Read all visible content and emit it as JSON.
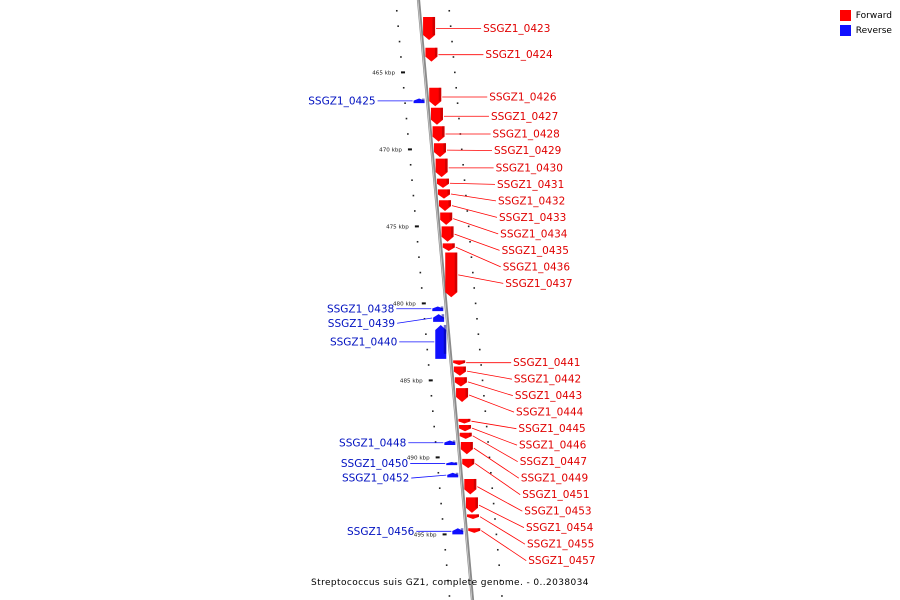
{
  "legend": {
    "forward": {
      "label": "Forward",
      "color": "#ff0000"
    },
    "reverse": {
      "label": "Reverse",
      "color": "#1010ff"
    }
  },
  "caption": "Streptococcus suis GZ1, complete genome. - 0..2038034",
  "ticks": [
    {
      "kbp": 465,
      "label": "465 kbp"
    },
    {
      "kbp": 470,
      "label": "470 kbp"
    },
    {
      "kbp": 475,
      "label": "475 kbp"
    },
    {
      "kbp": 480,
      "label": "480 kbp"
    },
    {
      "kbp": 485,
      "label": "485 kbp"
    },
    {
      "kbp": 490,
      "label": "490 kbp"
    },
    {
      "kbp": 495,
      "label": "495 kbp"
    }
  ],
  "genes": [
    {
      "name": "SSGZ1_0423",
      "strand": "forward",
      "start_kbp": 461.4,
      "end_kbp": 462.9
    },
    {
      "name": "SSGZ1_0424",
      "strand": "forward",
      "start_kbp": 463.4,
      "end_kbp": 464.3
    },
    {
      "name": "SSGZ1_0425",
      "strand": "reverse",
      "start_kbp": 466.7,
      "end_kbp": 467.0
    },
    {
      "name": "SSGZ1_0426",
      "strand": "forward",
      "start_kbp": 466.0,
      "end_kbp": 467.2
    },
    {
      "name": "SSGZ1_0427",
      "strand": "forward",
      "start_kbp": 467.3,
      "end_kbp": 468.4
    },
    {
      "name": "SSGZ1_0428",
      "strand": "forward",
      "start_kbp": 468.5,
      "end_kbp": 469.5
    },
    {
      "name": "SSGZ1_0429",
      "strand": "forward",
      "start_kbp": 469.6,
      "end_kbp": 470.5
    },
    {
      "name": "SSGZ1_0430",
      "strand": "forward",
      "start_kbp": 470.6,
      "end_kbp": 471.8
    },
    {
      "name": "SSGZ1_0431",
      "strand": "forward",
      "start_kbp": 471.9,
      "end_kbp": 472.5
    },
    {
      "name": "SSGZ1_0432",
      "strand": "forward",
      "start_kbp": 472.6,
      "end_kbp": 473.2
    },
    {
      "name": "SSGZ1_0433",
      "strand": "forward",
      "start_kbp": 473.3,
      "end_kbp": 474.0
    },
    {
      "name": "SSGZ1_0434",
      "strand": "forward",
      "start_kbp": 474.1,
      "end_kbp": 474.9
    },
    {
      "name": "SSGZ1_0435",
      "strand": "forward",
      "start_kbp": 475.0,
      "end_kbp": 476.0
    },
    {
      "name": "SSGZ1_0436",
      "strand": "forward",
      "start_kbp": 476.1,
      "end_kbp": 476.6
    },
    {
      "name": "SSGZ1_0437",
      "strand": "forward",
      "start_kbp": 476.7,
      "end_kbp": 479.6
    },
    {
      "name": "SSGZ1_0438",
      "strand": "reverse",
      "start_kbp": 480.2,
      "end_kbp": 480.5
    },
    {
      "name": "SSGZ1_0439",
      "strand": "reverse",
      "start_kbp": 480.7,
      "end_kbp": 481.2
    },
    {
      "name": "SSGZ1_0440",
      "strand": "reverse",
      "start_kbp": 481.4,
      "end_kbp": 483.6
    },
    {
      "name": "SSGZ1_0441",
      "strand": "forward",
      "start_kbp": 483.7,
      "end_kbp": 484.0
    },
    {
      "name": "SSGZ1_0442",
      "strand": "forward",
      "start_kbp": 484.1,
      "end_kbp": 484.7
    },
    {
      "name": "SSGZ1_0443",
      "strand": "forward",
      "start_kbp": 484.8,
      "end_kbp": 485.4
    },
    {
      "name": "SSGZ1_0444",
      "strand": "forward",
      "start_kbp": 485.5,
      "end_kbp": 486.4
    },
    {
      "name": "SSGZ1_0445",
      "strand": "forward",
      "start_kbp": 487.5,
      "end_kbp": 487.8
    },
    {
      "name": "SSGZ1_0446",
      "strand": "forward",
      "start_kbp": 487.9,
      "end_kbp": 488.3
    },
    {
      "name": "SSGZ1_0447",
      "strand": "forward",
      "start_kbp": 488.4,
      "end_kbp": 488.8
    },
    {
      "name": "SSGZ1_0448",
      "strand": "reverse",
      "start_kbp": 488.9,
      "end_kbp": 489.2
    },
    {
      "name": "SSGZ1_0449",
      "strand": "forward",
      "start_kbp": 489.0,
      "end_kbp": 489.8
    },
    {
      "name": "SSGZ1_0450",
      "strand": "reverse",
      "start_kbp": 490.3,
      "end_kbp": 490.5
    },
    {
      "name": "SSGZ1_0451",
      "strand": "forward",
      "start_kbp": 490.1,
      "end_kbp": 490.7
    },
    {
      "name": "SSGZ1_0452",
      "strand": "reverse",
      "start_kbp": 491.0,
      "end_kbp": 491.3
    },
    {
      "name": "SSGZ1_0453",
      "strand": "forward",
      "start_kbp": 491.4,
      "end_kbp": 492.4
    },
    {
      "name": "SSGZ1_0454",
      "strand": "forward",
      "start_kbp": 492.6,
      "end_kbp": 493.6
    },
    {
      "name": "SSGZ1_0455",
      "strand": "forward",
      "start_kbp": 493.7,
      "end_kbp": 494.0
    },
    {
      "name": "SSGZ1_0456",
      "strand": "reverse",
      "start_kbp": 494.6,
      "end_kbp": 495.0
    },
    {
      "name": "SSGZ1_0457",
      "strand": "forward",
      "start_kbp": 494.6,
      "end_kbp": 494.9
    }
  ]
}
